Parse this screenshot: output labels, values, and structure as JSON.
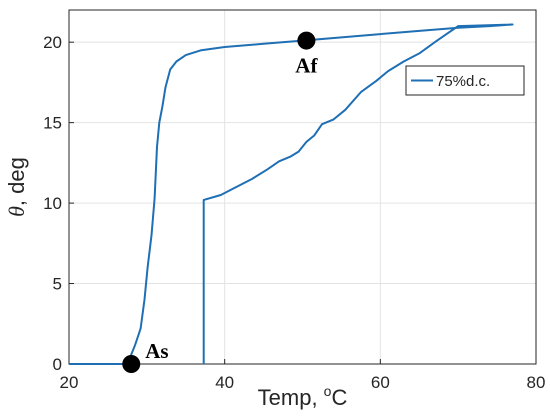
{
  "chart_data": {
    "type": "line",
    "title": "",
    "xlabel_main": "Temp, ",
    "xlabel_sup": "o",
    "xlabel_unit": "C",
    "ylabel_var": "θ",
    "ylabel_unit": ", deg",
    "xlim": [
      20,
      80
    ],
    "ylim": [
      0,
      22
    ],
    "xticks": [
      20,
      40,
      60,
      80
    ],
    "yticks": [
      0,
      5,
      10,
      15,
      20
    ],
    "grid": true,
    "legend_position": "right",
    "series": [
      {
        "name": "75%d.c.",
        "color": "#1f6fb4",
        "x": [
          20,
          27.5,
          28.5,
          29.2,
          29.7,
          30.1,
          30.6,
          31.0,
          31.3,
          31.6,
          32.0,
          32.4,
          33.0,
          33.8,
          35.0,
          37.0,
          40.0,
          45.0,
          50.0,
          55.0,
          60.0,
          65.0,
          70.0,
          74.0,
          77.0,
          70.0,
          68.5,
          67.0,
          65.0,
          63.0,
          61.0,
          59.5,
          57.5,
          55.5,
          54.0,
          52.5,
          51.5,
          50.5,
          49.5,
          48.5,
          47.0,
          45.5,
          43.5,
          41.5,
          39.5,
          37.3,
          37.3,
          37.3
        ],
        "y": [
          0,
          0,
          1.2,
          2.2,
          4.0,
          6.0,
          8.0,
          10.3,
          13.5,
          15.0,
          16.0,
          17.2,
          18.3,
          18.8,
          19.2,
          19.5,
          19.7,
          19.9,
          20.1,
          20.3,
          20.5,
          20.7,
          20.9,
          21.0,
          21.1,
          21.0,
          20.5,
          20.0,
          19.3,
          18.8,
          18.2,
          17.6,
          16.9,
          15.8,
          15.2,
          14.9,
          14.2,
          13.8,
          13.2,
          12.9,
          12.6,
          12.1,
          11.5,
          11.0,
          10.5,
          10.2,
          10.0,
          0
        ]
      }
    ],
    "annotations": [
      {
        "label": "As",
        "x": 28,
        "y": 0
      },
      {
        "label": "Af",
        "x": 50.5,
        "y": 20.1
      }
    ]
  }
}
